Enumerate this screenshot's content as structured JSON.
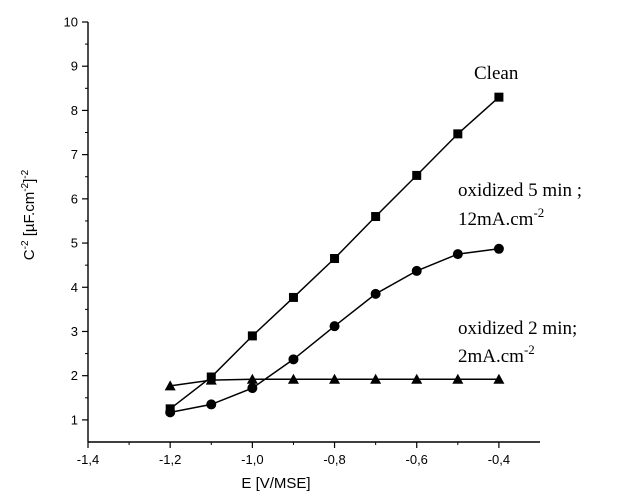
{
  "chart_data": {
    "type": "line",
    "xlabel": "E [V/MSE]",
    "ylabel": {
      "base": "C",
      "sup1": "-2",
      "mid": " [µF.cm",
      "sup2": "-2",
      "end": "]",
      "sup3": "-2"
    },
    "xlim": [
      -1.4,
      -0.3
    ],
    "ylim": [
      0.5,
      10
    ],
    "xticks": [
      -1.4,
      -1.2,
      -1.0,
      -0.8,
      -0.6,
      -0.4
    ],
    "xtick_labels": [
      "-1,4",
      "-1,2",
      "-1,0",
      "-0,8",
      "-0,6",
      "-0,4"
    ],
    "yticks": [
      1,
      2,
      3,
      4,
      5,
      6,
      7,
      8,
      9,
      10
    ],
    "ytick_labels": [
      "1",
      "2",
      "3",
      "4",
      "5",
      "6",
      "7",
      "8",
      "9",
      "10"
    ],
    "grid": false,
    "series": [
      {
        "marker": "square",
        "x": [
          -1.2,
          -1.1,
          -1.0,
          -0.9,
          -0.8,
          -0.7,
          -0.6,
          -0.5,
          -0.4
        ],
        "y": [
          1.25,
          1.97,
          2.9,
          3.77,
          4.65,
          5.6,
          6.53,
          7.47,
          8.3
        ]
      },
      {
        "marker": "circle",
        "x": [
          -1.2,
          -1.1,
          -1.0,
          -0.9,
          -0.8,
          -0.7,
          -0.6,
          -0.5,
          -0.4
        ],
        "y": [
          1.17,
          1.35,
          1.72,
          2.37,
          3.12,
          3.85,
          4.37,
          4.75,
          4.87
        ]
      },
      {
        "marker": "triangle",
        "x": [
          -1.2,
          -1.1,
          -1.0,
          -0.9,
          -0.8,
          -0.7,
          -0.6,
          -0.5,
          -0.4
        ],
        "y": [
          1.77,
          1.9,
          1.92,
          1.92,
          1.92,
          1.92,
          1.92,
          1.92,
          1.92
        ]
      }
    ],
    "annotations": {
      "clean": "Clean",
      "ox5_line1": "oxidized 5 min ;",
      "ox5_line2_base": "12mA.cm",
      "ox5_line2_sup": "-2",
      "ox2_line1": "oxidized 2 min;",
      "ox2_line2_base": "2mA.cm",
      "ox2_line2_sup": "-2"
    }
  }
}
